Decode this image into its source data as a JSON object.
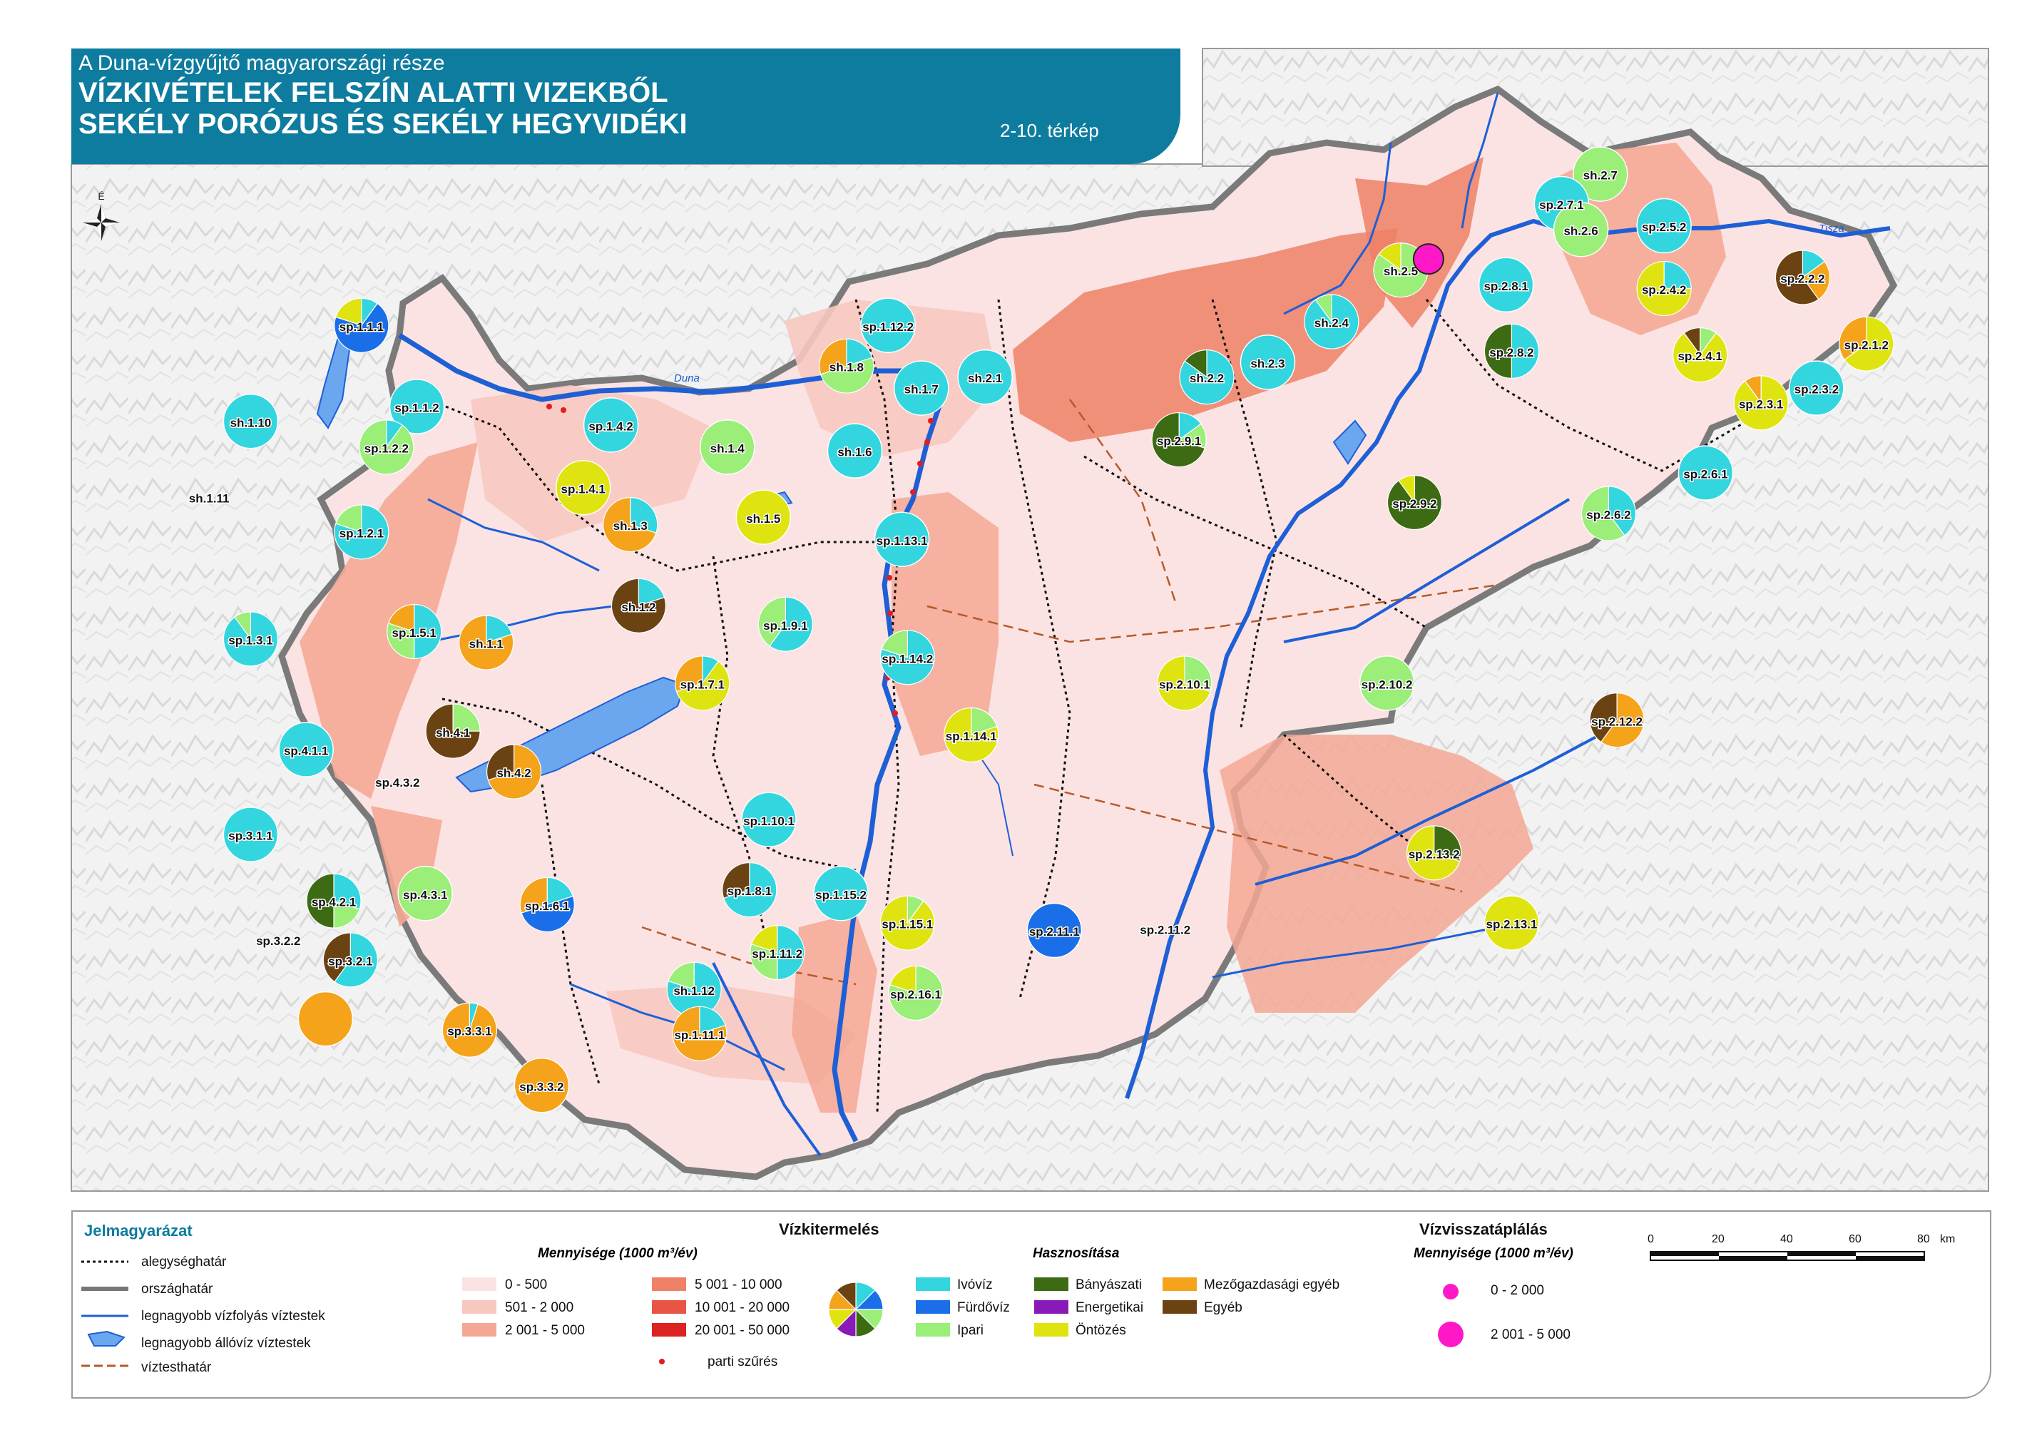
{
  "header": {
    "subtitle": "A Duna-vízgyűjtő magyarországi része",
    "title_line1": "VÍZKIVÉTELEK FELSZÍN ALATTI VIZEKBŐL",
    "title_line2": "SEKÉLY PORÓZUS ÉS SEKÉLY HEGYVIDÉKI",
    "map_number": "2-10. térkép",
    "color": "#0e7c9e"
  },
  "compass_label": "É",
  "rivers": {
    "danube": "Duna",
    "tisza": "Tisza"
  },
  "legend": {
    "title": "Jelmagyarázat",
    "line_items": [
      "alegységhatár",
      "országhatár",
      "legnagyobb vízfolyás víztestek",
      "legnagyobb állóvíz víztestek",
      "víztesthatár"
    ],
    "production_title": "Vízkitermelés",
    "quantity_title": "Mennyisége (1000 m³/év)",
    "quantity_classes": [
      {
        "label": "0 - 500",
        "color": "#fbe3e3"
      },
      {
        "label": "501 - 2 000",
        "color": "#f7c8c0"
      },
      {
        "label": "2 001 - 5 000",
        "color": "#f4a894"
      },
      {
        "label": "5 001 - 10 000",
        "color": "#ef8166"
      },
      {
        "label": "10 001 - 20 000",
        "color": "#e85544"
      },
      {
        "label": "20 001 - 50 000",
        "color": "#dd2222"
      }
    ],
    "bank_filtration": "parti szűrés",
    "use_title": "Hasznosítása",
    "uses": [
      {
        "key": "ivoviz",
        "label": "Ivóvíz",
        "color": "#33d6de"
      },
      {
        "key": "furdoviz",
        "label": "Fürdővíz",
        "color": "#1a6ee8"
      },
      {
        "key": "ipari",
        "label": "Ipari",
        "color": "#9bee78"
      },
      {
        "key": "banyaszati",
        "label": "Bányászati",
        "color": "#3d6b14"
      },
      {
        "key": "energetikai",
        "label": "Energetikai",
        "color": "#8a1ab8"
      },
      {
        "key": "ontozes",
        "label": "Öntözés",
        "color": "#dfe410"
      },
      {
        "key": "mezogazdasagi",
        "label": "Mezőgazdasági egyéb",
        "color": "#f5a31a"
      },
      {
        "key": "egyeb",
        "label": "Egyéb",
        "color": "#6b4313"
      }
    ],
    "recharge_title": "Vízvisszatáplálás",
    "recharge_quantity_title": "Mennyisége (1000 m³/év)",
    "recharge_classes": [
      "0 - 2 000",
      "2 001 - 5 000"
    ],
    "recharge_color": "#ff18c8",
    "scale_labels": [
      "0",
      "20",
      "40",
      "60",
      "80"
    ],
    "scale_unit": "km"
  },
  "units": [
    {
      "label": "sh.2.7",
      "x": 21.62,
      "y": 48.36,
      "r": 1,
      "shares": {
        "ipari": 1
      }
    },
    {
      "label": "sp.2.7.1",
      "x": 21.48,
      "y": 48.28,
      "r": 1,
      "shares": {
        "ivoviz": 1
      }
    },
    {
      "label": "sh.2.6",
      "x": 21.55,
      "y": 48.21,
      "r": 1,
      "shares": {
        "ipari": 1
      }
    },
    {
      "label": "sp.2.5.2",
      "x": 21.85,
      "y": 48.22,
      "r": 1,
      "shares": {
        "ivoviz": 1
      }
    },
    {
      "label": "sh.2.5",
      "x": 20.9,
      "y": 48.1,
      "r": 1,
      "shares": {
        "ipari": 0.85,
        "ontozes": 0.15
      }
    },
    {
      "label": "sp.2.4.2",
      "x": 21.85,
      "y": 48.05,
      "r": 1,
      "shares": {
        "ontozes": 0.75,
        "ivoviz": 0.25
      }
    },
    {
      "label": "sp.2.2.2",
      "x": 22.35,
      "y": 48.08,
      "r": 1,
      "shares": {
        "egyeb": 0.6,
        "mezogazdasagi": 0.25,
        "ivoviz": 0.15
      }
    },
    {
      "label": "sp.2.1.2",
      "x": 22.58,
      "y": 47.9,
      "r": 1,
      "shares": {
        "ontozes": 0.65,
        "mezogazdasagi": 0.35
      }
    },
    {
      "label": "sp.1.12.2",
      "x": 19.05,
      "y": 47.95,
      "r": 1,
      "shares": {
        "ivoviz": 1
      }
    },
    {
      "label": "sh.2.4",
      "x": 20.65,
      "y": 47.96,
      "r": 1,
      "shares": {
        "ivoviz": 0.9,
        "ipari": 0.1
      }
    },
    {
      "label": "sh.2.3",
      "x": 20.42,
      "y": 47.85,
      "r": 1,
      "shares": {
        "ivoviz": 1
      }
    },
    {
      "label": "sp.2.8.1",
      "x": 21.28,
      "y": 48.06,
      "r": 1,
      "shares": {
        "ivoviz": 1
      }
    },
    {
      "label": "sp.2.8.2",
      "x": 21.3,
      "y": 47.88,
      "r": 1,
      "shares": {
        "banyaszati": 0.5,
        "ivoviz": 0.5
      }
    },
    {
      "label": "sh.1.8",
      "x": 18.9,
      "y": 47.84,
      "r": 1,
      "shares": {
        "ipari": 0.5,
        "mezogazdasagi": 0.3,
        "ivoviz": 0.2
      }
    },
    {
      "label": "sh.2.2",
      "x": 20.2,
      "y": 47.81,
      "r": 1,
      "shares": {
        "ivoviz": 0.85,
        "banyaszati": 0.15
      }
    },
    {
      "label": "sp.2.4.1",
      "x": 21.98,
      "y": 47.87,
      "r": 1,
      "shares": {
        "ontozes": 0.8,
        "egyeb": 0.1,
        "ipari": 0.1
      }
    },
    {
      "label": "sp.2.3.2",
      "x": 22.4,
      "y": 47.78,
      "r": 1,
      "shares": {
        "ivoviz": 1
      }
    },
    {
      "label": "sp.2.3.1",
      "x": 22.2,
      "y": 47.74,
      "r": 1,
      "shares": {
        "ontozes": 0.9,
        "mezogazdasagi": 0.1
      }
    },
    {
      "label": "sp.1.1.1",
      "x": 17.15,
      "y": 47.95,
      "r": 1,
      "shares": {
        "furdoviz": 0.7,
        "ontozes": 0.2,
        "ivoviz": 0.1
      }
    },
    {
      "label": "sh.1.7",
      "x": 19.17,
      "y": 47.78,
      "r": 1,
      "shares": {
        "ivoviz": 1
      }
    },
    {
      "label": "sh.2.1",
      "x": 19.4,
      "y": 47.81,
      "r": 1,
      "shares": {
        "ivoviz": 1
      }
    },
    {
      "label": "sp.2.9.1",
      "x": 20.1,
      "y": 47.64,
      "r": 1,
      "shares": {
        "banyaszati": 0.7,
        "ipari": 0.15,
        "ivoviz": 0.15
      }
    },
    {
      "label": "sp.1.1.2",
      "x": 17.35,
      "y": 47.73,
      "r": 1,
      "shares": {
        "ivoviz": 1
      }
    },
    {
      "label": "sh.1.10",
      "x": 16.75,
      "y": 47.69,
      "r": 1,
      "shares": {
        "ivoviz": 1
      }
    },
    {
      "label": "sp.1.4.2",
      "x": 18.05,
      "y": 47.68,
      "r": 1,
      "shares": {
        "ivoviz": 1
      }
    },
    {
      "label": "sp.1.2.2",
      "x": 17.24,
      "y": 47.62,
      "r": 1,
      "shares": {
        "ipari": 0.9,
        "ivoviz": 0.1
      }
    },
    {
      "label": "sh.1.4",
      "x": 18.47,
      "y": 47.62,
      "r": 1,
      "shares": {
        "ipari": 1
      }
    },
    {
      "label": "sh.1.6",
      "x": 18.93,
      "y": 47.61,
      "r": 1,
      "shares": {
        "ivoviz": 1
      }
    },
    {
      "label": "sp.2.9.2",
      "x": 20.95,
      "y": 47.47,
      "r": 1,
      "shares": {
        "banyaszati": 0.9,
        "ontozes": 0.1
      }
    },
    {
      "label": "sp.2.6.1",
      "x": 22.0,
      "y": 47.55,
      "r": 1,
      "shares": {
        "ivoviz": 1
      }
    },
    {
      "label": "sp.1.4.1",
      "x": 17.95,
      "y": 47.51,
      "r": 1,
      "shares": {
        "ontozes": 1
      }
    },
    {
      "label": "sh.1.3",
      "x": 18.12,
      "y": 47.41,
      "r": 1,
      "shares": {
        "mezogazdasagi": 0.7,
        "ivoviz": 0.3
      }
    },
    {
      "label": "sh.1.5",
      "x": 18.6,
      "y": 47.43,
      "r": 1,
      "shares": {
        "ontozes": 1
      }
    },
    {
      "label": "sp.1.2.1",
      "x": 17.15,
      "y": 47.39,
      "r": 1,
      "shares": {
        "ivoviz": 0.8,
        "ipari": 0.2
      }
    },
    {
      "label": "sp.1.13.1",
      "x": 19.1,
      "y": 47.37,
      "r": 1,
      "shares": {
        "ivoviz": 1
      }
    },
    {
      "label": "sp.2.6.2",
      "x": 21.65,
      "y": 47.44,
      "r": 1,
      "shares": {
        "ipari": 0.6,
        "ivoviz": 0.4
      }
    },
    {
      "label": "sh.1.2",
      "x": 18.15,
      "y": 47.19,
      "r": 1,
      "shares": {
        "egyeb": 0.8,
        "ivoviz": 0.2
      }
    },
    {
      "label": "sp.1.9.1",
      "x": 18.68,
      "y": 47.14,
      "r": 1,
      "shares": {
        "ivoviz": 0.6,
        "ipari": 0.4
      }
    },
    {
      "label": "sp.1.5.1",
      "x": 17.34,
      "y": 47.12,
      "r": 1,
      "shares": {
        "ivoviz": 0.5,
        "ipari": 0.3,
        "mezogazdasagi": 0.2
      }
    },
    {
      "label": "sh.1.1",
      "x": 17.6,
      "y": 47.09,
      "r": 1,
      "shares": {
        "mezogazdasagi": 0.8,
        "ivoviz": 0.2
      }
    },
    {
      "label": "sp.1.3.1",
      "x": 16.75,
      "y": 47.1,
      "r": 1,
      "shares": {
        "ivoviz": 0.9,
        "ipari": 0.1
      }
    },
    {
      "label": "sp.1.14.2",
      "x": 19.12,
      "y": 47.05,
      "r": 1,
      "shares": {
        "ivoviz": 0.8,
        "ipari": 0.2
      }
    },
    {
      "label": "sp.2.10.2",
      "x": 20.85,
      "y": 46.98,
      "r": 1,
      "shares": {
        "ipari": 1
      }
    },
    {
      "label": "sp.2.10.1",
      "x": 20.12,
      "y": 46.98,
      "r": 1,
      "shares": {
        "ontozes": 0.7,
        "ipari": 0.3
      }
    },
    {
      "label": "sp.1.7.1",
      "x": 18.38,
      "y": 46.98,
      "r": 1,
      "shares": {
        "ontozes": 0.6,
        "mezogazdasagi": 0.3,
        "ivoviz": 0.1
      }
    },
    {
      "label": "sp.2.12.2",
      "x": 21.68,
      "y": 46.88,
      "r": 1,
      "shares": {
        "mezogazdasagi": 0.6,
        "egyeb": 0.4
      }
    },
    {
      "label": "sh.4.1",
      "x": 17.48,
      "y": 46.85,
      "r": 1,
      "shares": {
        "egyeb": 0.75,
        "ipari": 0.25
      }
    },
    {
      "label": "sp.1.14.1",
      "x": 19.35,
      "y": 46.84,
      "r": 1,
      "shares": {
        "ontozes": 0.8,
        "ipari": 0.2
      }
    },
    {
      "label": "sp.4.1.1",
      "x": 16.95,
      "y": 46.8,
      "r": 1,
      "shares": {
        "ivoviz": 1
      }
    },
    {
      "label": "sh.4.2",
      "x": 17.7,
      "y": 46.74,
      "r": 1,
      "shares": {
        "mezogazdasagi": 0.7,
        "egyeb": 0.3
      }
    },
    {
      "label": "sp.1.10.1",
      "x": 18.62,
      "y": 46.61,
      "r": 1,
      "shares": {
        "ivoviz": 1
      }
    },
    {
      "label": "sp.3.1.1",
      "x": 16.75,
      "y": 46.57,
      "r": 1,
      "shares": {
        "ivoviz": 1
      }
    },
    {
      "label": "sp.2.13.2",
      "x": 21.02,
      "y": 46.52,
      "r": 1,
      "shares": {
        "ontozes": 0.7,
        "banyaszati": 0.3
      }
    },
    {
      "label": "sp.1.8.1",
      "x": 18.55,
      "y": 46.42,
      "r": 1,
      "shares": {
        "ivoviz": 0.7,
        "egyeb": 0.3
      }
    },
    {
      "label": "sp.4.3.1",
      "x": 17.38,
      "y": 46.41,
      "r": 1,
      "shares": {
        "ipari": 1
      }
    },
    {
      "label": "sp.1.15.2",
      "x": 18.88,
      "y": 46.41,
      "r": 1,
      "shares": {
        "ivoviz": 1
      }
    },
    {
      "label": "sp.4.2.1",
      "x": 17.05,
      "y": 46.39,
      "r": 1,
      "shares": {
        "banyaszati": 0.5,
        "ivoviz": 0.3,
        "ipari": 0.2
      }
    },
    {
      "label": "sp.1.6.1",
      "x": 17.82,
      "y": 46.38,
      "r": 1,
      "shares": {
        "furdoviz": 0.5,
        "mezogazdasagi": 0.3,
        "ivoviz": 0.2
      }
    },
    {
      "label": "sp.1.15.1",
      "x": 19.12,
      "y": 46.33,
      "r": 1,
      "shares": {
        "ontozes": 0.9,
        "ipari": 0.1
      }
    },
    {
      "label": "sp.2.11.1",
      "x": 19.65,
      "y": 46.31,
      "r": 1,
      "shares": {
        "furdoviz": 1
      }
    },
    {
      "label": "sp.2.13.1",
      "x": 21.3,
      "y": 46.33,
      "r": 1,
      "shares": {
        "ontozes": 1
      }
    },
    {
      "label": "sp.1.11.2",
      "x": 18.65,
      "y": 46.25,
      "r": 1,
      "shares": {
        "ivoviz": 0.5,
        "ipari": 0.3,
        "ontozes": 0.2
      }
    },
    {
      "label": "sp.3.2.1",
      "x": 17.11,
      "y": 46.23,
      "r": 1,
      "shares": {
        "ivoviz": 0.6,
        "egyeb": 0.4
      }
    },
    {
      "label": "sh.1.12",
      "x": 18.35,
      "y": 46.15,
      "r": 1,
      "shares": {
        "ivoviz": 0.8,
        "ipari": 0.2
      }
    },
    {
      "label": "sp.2.16.1",
      "x": 19.15,
      "y": 46.14,
      "r": 1,
      "shares": {
        "ipari": 0.8,
        "ontozes": 0.2
      }
    },
    {
      "label": "sp.1.11.1",
      "x": 18.37,
      "y": 46.03,
      "r": 1,
      "shares": {
        "mezogazdasagi": 0.8,
        "ivoviz": 0.2
      }
    },
    {
      "label": "sp.3.3.1",
      "x": 17.54,
      "y": 46.04,
      "r": 1,
      "shares": {
        "mezogazdasagi": 0.95,
        "ivoviz": 0.05
      }
    },
    {
      "label": "sp.3.3.2",
      "x": 17.8,
      "y": 45.89,
      "r": 1,
      "shares": {
        "mezogazdasagi": 1
      }
    },
    {
      "label": "",
      "x": 17.02,
      "y": 46.07,
      "r": 1,
      "shares": {
        "mezogazdasagi": 1
      }
    },
    {
      "label": "sh.1.11",
      "x": 16.6,
      "y": 47.47,
      "r": 0,
      "shares": {}
    },
    {
      "label": "sp.2.11.2",
      "x": 20.05,
      "y": 46.3,
      "r": 0,
      "shares": {}
    },
    {
      "label": "sp.3.2.2",
      "x": 16.85,
      "y": 46.27,
      "r": 0,
      "shares": {}
    },
    {
      "label": "sp.4.3.2",
      "x": 17.28,
      "y": 46.7,
      "r": 0,
      "shares": {}
    }
  ],
  "recharge_points": [
    {
      "x": 21.0,
      "y": 48.13,
      "class": "2 001 - 5 000"
    }
  ]
}
